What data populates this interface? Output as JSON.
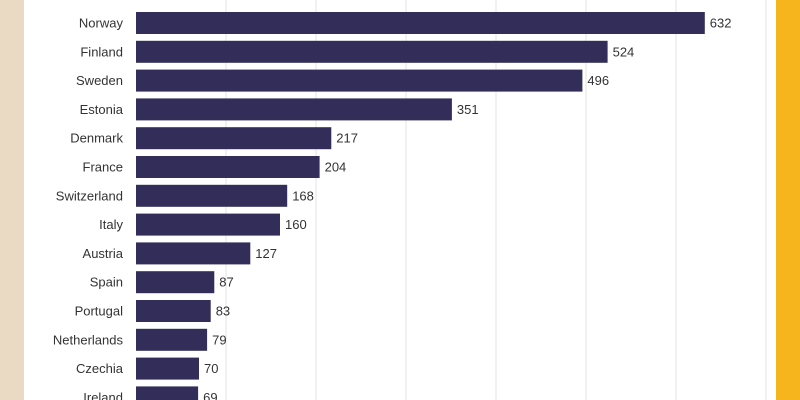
{
  "colors": {
    "bar": "#322e59",
    "left_stripe": "#ead9c3",
    "right_stripe": "#f6b51c"
  },
  "chart_data": {
    "type": "bar",
    "orientation": "horizontal",
    "categories": [
      "Norway",
      "Finland",
      "Sweden",
      "Estonia",
      "Denmark",
      "France",
      "Switzerland",
      "Italy",
      "Austria",
      "Spain",
      "Portugal",
      "Netherlands",
      "Czechia",
      "Ireland"
    ],
    "values": [
      632,
      524,
      496,
      351,
      217,
      204,
      168,
      160,
      127,
      87,
      83,
      79,
      70,
      69
    ],
    "title": "",
    "xlabel": "",
    "ylabel": "",
    "xlim": [
      0,
      700
    ],
    "grid": true,
    "data_labels": true
  }
}
